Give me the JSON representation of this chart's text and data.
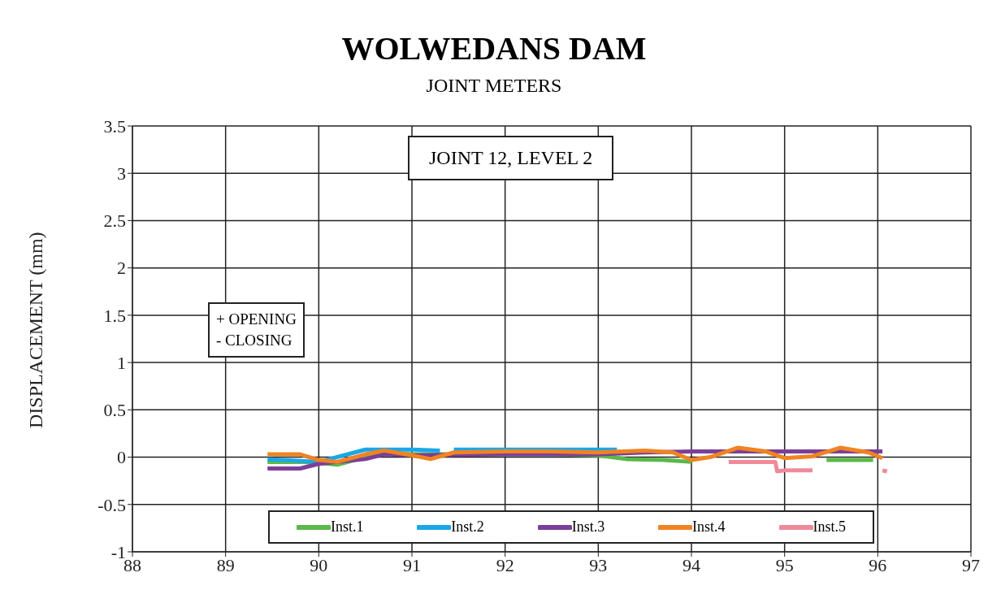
{
  "chart_data": {
    "type": "line",
    "title": "WOLWEDANS DAM",
    "subtitle": "JOINT METERS",
    "ylabel": "DISPLACEMENT (mm)",
    "annotations": [
      "JOINT 12, LEVEL 2",
      "+ OPENING",
      "- CLOSING"
    ],
    "xlim": [
      88,
      97
    ],
    "xticks": [
      88,
      89,
      90,
      91,
      92,
      93,
      94,
      95,
      96,
      97
    ],
    "ylim": [
      -1,
      3.5
    ],
    "yticks": [
      -1,
      -0.5,
      0,
      0.5,
      1,
      1.5,
      2,
      2.5,
      3,
      3.5
    ],
    "grid": true,
    "legend": "bottom",
    "marker": "none",
    "line_style": "solid",
    "series": [
      {
        "name": "Inst.1",
        "color": "#5bb84a",
        "x": [
          89.45,
          89.8,
          90,
          90.2,
          90.5,
          90.7,
          91,
          91.5,
          92,
          92.5,
          93,
          93.3,
          93.7,
          94,
          94.01,
          95.45,
          95.95
        ],
        "values": [
          -0.05,
          -0.05,
          -0.06,
          -0.08,
          0,
          0.05,
          0.03,
          0.03,
          0.03,
          0.03,
          0.02,
          -0.02,
          -0.03,
          -0.05,
          null,
          -0.03,
          -0.03
        ]
      },
      {
        "name": "Inst.2",
        "color": "#1aa7e8",
        "x": [
          89.45,
          90,
          90.5,
          90.7,
          91,
          91.3,
          91.35,
          91.45,
          92,
          92.5,
          93,
          93.2
        ],
        "values": [
          -0.02,
          -0.05,
          0.08,
          0.08,
          0.08,
          0.07,
          null,
          0.08,
          0.08,
          0.08,
          0.08,
          0.08
        ]
      },
      {
        "name": "Inst.3",
        "color": "#7b3f98",
        "x": [
          89.45,
          89.8,
          90,
          90.5,
          90.7,
          91,
          92,
          93,
          93.5,
          94,
          95,
          96.05
        ],
        "values": [
          -0.12,
          -0.12,
          -0.07,
          -0.02,
          0.03,
          0.02,
          0.03,
          0.03,
          0.05,
          0.06,
          0.06,
          0.06
        ]
      },
      {
        "name": "Inst.4",
        "color": "#f08322",
        "x": [
          89.45,
          89.8,
          90,
          90.2,
          90.5,
          90.7,
          91,
          91.2,
          91.45,
          92,
          92.5,
          93,
          93.5,
          93.8,
          94,
          94.2,
          94.5,
          94.8,
          95,
          95.3,
          95.6,
          95.9,
          96.05
        ],
        "values": [
          0.03,
          0.03,
          -0.03,
          -0.05,
          0.03,
          0.07,
          0.02,
          -0.02,
          0.05,
          0.06,
          0.06,
          0.05,
          0.07,
          0.05,
          -0.03,
          0,
          0.1,
          0.06,
          -0.01,
          0.01,
          0.1,
          0.05,
          -0.01
        ]
      },
      {
        "name": "Inst.5",
        "color": "#ef8a9a",
        "x": [
          94.4,
          94.9,
          94.92,
          95,
          95.3,
          95.31,
          96.05,
          96.1
        ],
        "values": [
          -0.05,
          -0.05,
          -0.15,
          -0.14,
          -0.14,
          null,
          -0.14,
          -0.15
        ]
      }
    ]
  }
}
